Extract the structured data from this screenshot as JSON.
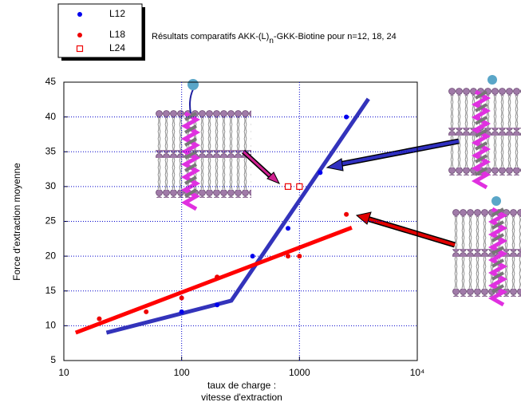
{
  "chart_data": {
    "type": "scatter",
    "title": [
      "Résultats comparatifs AKK-(L)",
      "n",
      "-GKK-Biotine  pour n=12, 18, 24"
    ],
    "x_label": [
      "taux de charge :",
      "vitesse d'extraction"
    ],
    "y_label": "Force d'extraction moyenne",
    "x_log": true,
    "xlim": [
      10,
      10000
    ],
    "xticks": [
      10,
      100,
      1000,
      {
        "value": 10000,
        "label": "10⁴"
      }
    ],
    "ylim": [
      5,
      45
    ],
    "yticks": [
      5,
      10,
      15,
      20,
      25,
      30,
      35,
      40,
      45
    ],
    "grid": true,
    "legend": "top-left",
    "series": [
      {
        "name": "L12",
        "color": "#0000ee",
        "marker": "circle",
        "x": [
          100,
          200,
          400,
          800,
          1500,
          2500
        ],
        "values": [
          12,
          13,
          20,
          24,
          32,
          40
        ]
      },
      {
        "name": "L18",
        "color": "#ee0000",
        "marker": "circle",
        "x": [
          20,
          50,
          100,
          200,
          800,
          1000,
          2500
        ],
        "values": [
          11,
          12,
          14,
          17,
          20,
          20,
          26
        ]
      },
      {
        "name": "L24",
        "color": "#ee0000",
        "marker": "square-open",
        "x": [
          800,
          1000
        ],
        "values": [
          30,
          30
        ]
      }
    ],
    "fit_lines": [
      {
        "color": "#3333bb",
        "x": [
          23,
          264,
          3850
        ],
        "values": [
          9,
          13.6,
          42.6
        ]
      },
      {
        "color": "#ff0000",
        "x": [
          12.6,
          2780
        ],
        "values": [
          9,
          24.1
        ]
      }
    ]
  }
}
